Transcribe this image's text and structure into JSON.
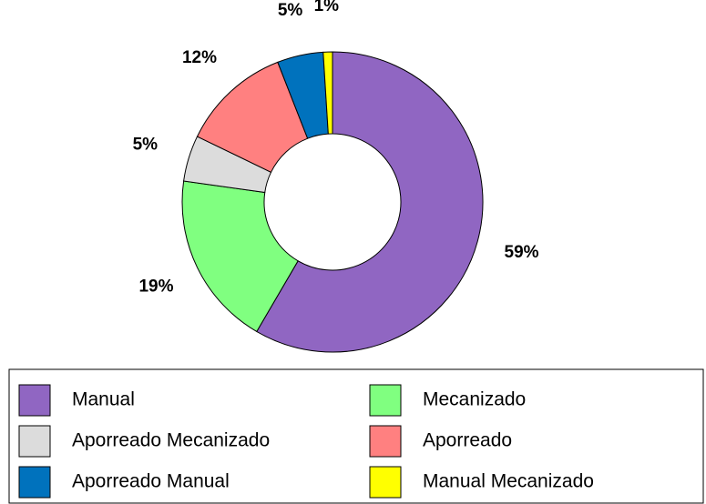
{
  "chart_data": {
    "type": "donut",
    "categories": [
      "Manual",
      "Mecanizado",
      "Aporreado Mecanizado",
      "Aporreado",
      "Aporreado Manual",
      "Manual Mecanizado"
    ],
    "values": [
      59,
      19,
      5,
      12,
      5,
      1
    ],
    "value_labels": [
      "59%",
      "19%",
      "5%",
      "12%",
      "5%",
      "1%"
    ],
    "colors": [
      "#9066c2",
      "#80ff80",
      "#dcdcdc",
      "#ff8080",
      "#0072bd",
      "#ffff00"
    ],
    "legend": "bottom"
  }
}
